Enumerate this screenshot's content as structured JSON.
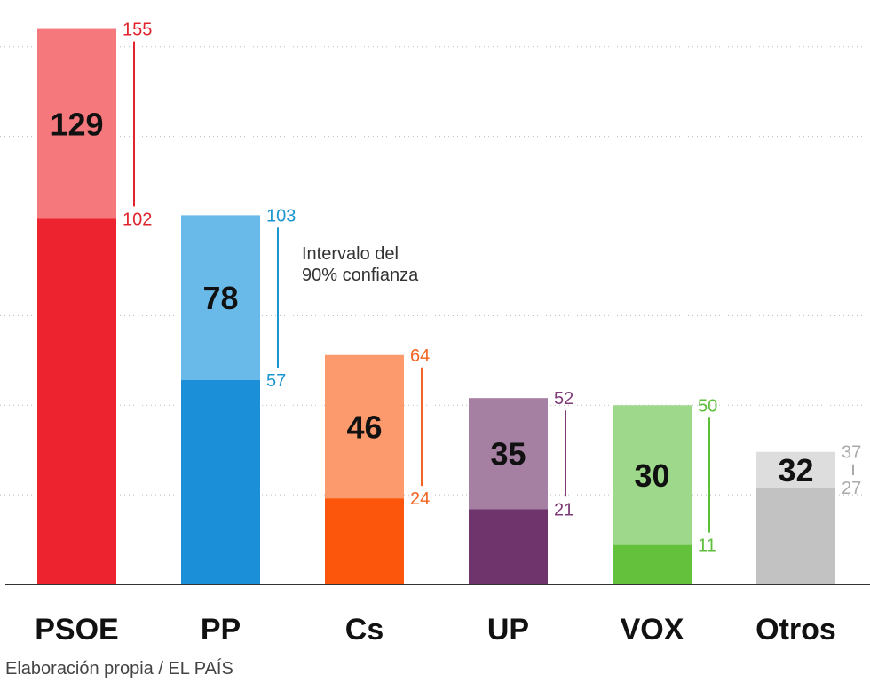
{
  "chart_data": {
    "type": "bar",
    "categories": [
      "PSOE",
      "PP",
      "Cs",
      "UP",
      "VOX",
      "Otros"
    ],
    "values": [
      129,
      78,
      46,
      35,
      30,
      32
    ],
    "interval_upper": [
      155,
      103,
      64,
      52,
      50,
      37
    ],
    "interval_lower": [
      102,
      57,
      24,
      21,
      11,
      27
    ],
    "colors_dark": [
      "#ed2330",
      "#1c8fd9",
      "#fb560b",
      "#6f346c",
      "#63c13c",
      "#c2c2c2"
    ],
    "colors_light": [
      "#f4787c",
      "#69b9e9",
      "#fc9a6d",
      "#a580a2",
      "#9ed88a",
      "#dddddd"
    ],
    "label_colors": [
      "#e0242d",
      "#1a95cf",
      "#f26522",
      "#7d3c78",
      "#5cbf39",
      "#aaaaaa"
    ],
    "annotation": "Intervalo del\n90% confianza",
    "ylim": [
      0,
      160
    ],
    "grid": true
  },
  "source": "Elaboración propia / EL PAÍS"
}
